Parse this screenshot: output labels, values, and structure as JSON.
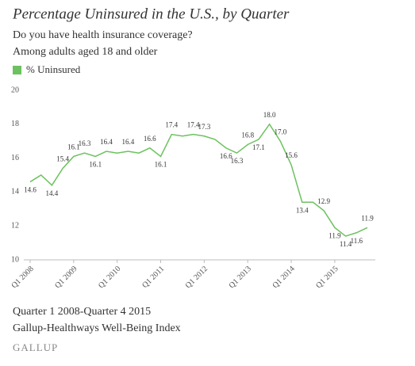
{
  "chart_data": {
    "type": "line",
    "title": "Percentage Uninsured in the U.S., by Quarter",
    "subtitle": [
      "Do you have health insurance coverage?",
      "Among adults aged 18 and older"
    ],
    "footnotes": [
      "Quarter 1 2008-Quarter 4 2015",
      "Gallup-Healthways Well-Being Index"
    ],
    "source": "GALLUP",
    "categories": [
      "Q1 2008",
      null,
      null,
      null,
      "Q1 2009",
      null,
      null,
      null,
      "Q1 2010",
      null,
      null,
      null,
      "Q1 2011",
      null,
      null,
      null,
      "Q1 2012",
      null,
      null,
      null,
      "Q1 2013",
      null,
      null,
      null,
      "Q1 2014",
      null,
      null,
      null,
      "Q1 2015",
      null,
      null,
      null
    ],
    "series": [
      {
        "name": "% Uninsured",
        "color": "#6cc25f",
        "values": [
          14.6,
          15.0,
          14.4,
          15.4,
          16.1,
          16.3,
          16.1,
          16.4,
          16.3,
          16.4,
          16.3,
          16.6,
          16.1,
          17.4,
          17.3,
          17.4,
          17.3,
          17.1,
          16.6,
          16.3,
          16.8,
          17.1,
          18.0,
          17.0,
          15.6,
          13.4,
          13.4,
          12.9,
          11.9,
          11.4,
          11.6,
          11.9
        ],
        "value_labels": [
          "14.6",
          null,
          "14.4",
          "15.4",
          "16.1",
          "16.3",
          "16.1",
          "16.4",
          null,
          "16.4",
          null,
          "16.6",
          "16.1",
          "17.4",
          null,
          "17.4",
          "17.3",
          null,
          "16.6",
          "16.3",
          "16.8",
          "17.1",
          "18.0",
          "17.0",
          "15.6",
          "13.4",
          null,
          "12.9",
          "11.9",
          "11.4",
          "11.6",
          "11.9"
        ]
      }
    ],
    "ylim": [
      10,
      20
    ],
    "yticks": [
      10,
      12,
      14,
      16,
      18,
      20
    ],
    "grid": false
  }
}
